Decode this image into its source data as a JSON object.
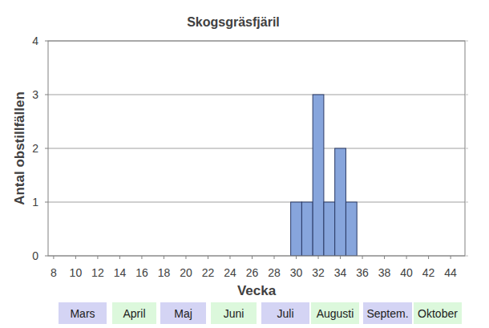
{
  "chart_data": {
    "type": "bar",
    "title": "Skogsgräsfjäril",
    "x_label": "Vecka",
    "y_label": "Antal obstillfällen",
    "x": [
      30,
      31,
      32,
      33,
      34,
      35
    ],
    "values": [
      1,
      1,
      3,
      1,
      2,
      1
    ],
    "color": "#87a5dc",
    "xlim": [
      7.5,
      45.3
    ],
    "xticks": [
      8,
      10,
      12,
      14,
      16,
      18,
      20,
      22,
      24,
      26,
      28,
      30,
      32,
      34,
      36,
      38,
      40,
      42,
      44
    ],
    "ylim": [
      0,
      4
    ],
    "yticks": [
      0,
      1,
      2,
      3,
      4
    ],
    "grid": true,
    "months": [
      "Mars",
      "April",
      "Maj",
      "Juni",
      "Juli",
      "Augusti",
      "Septem.",
      "Oktober"
    ]
  }
}
